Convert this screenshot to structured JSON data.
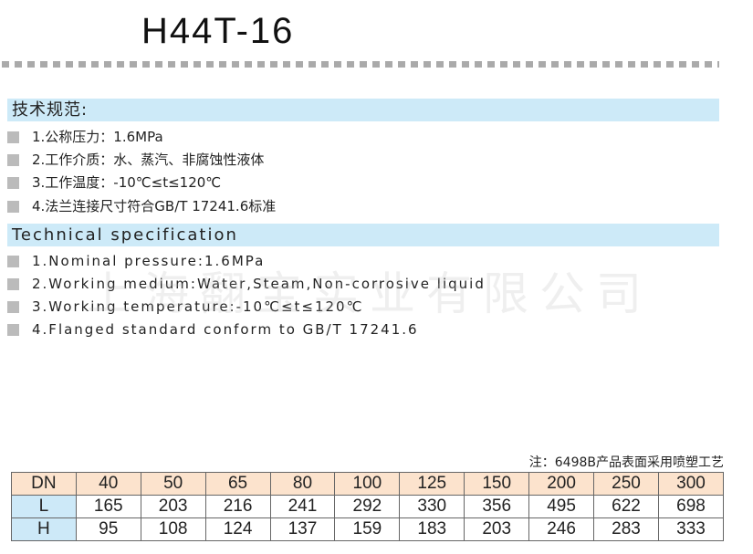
{
  "title": "H44T-16",
  "zh": {
    "heading": "技术规范:",
    "items": [
      "1.公称压力：1.6MPa",
      "2.工作介质：水、蒸汽、非腐蚀性液体",
      "3.工作温度：-10℃≤t≤120℃",
      "4.法兰连接尺寸符合GB/T 17241.6标准"
    ]
  },
  "en": {
    "heading": "Technical specification",
    "items": [
      "1.Nominal pressure:1.6MPa",
      "2.Working medium:Water,Steam,Non-corrosive liquid",
      "3.Working temperature:-10℃≤t≤120℃",
      "4.Flanged standard conform to GB/T 17241.6"
    ]
  },
  "watermark": "上海翻宝实业有限公司",
  "note": "注：6498B产品表面采用喷塑工艺",
  "table": {
    "rows": [
      {
        "label": "DN",
        "values": [
          "40",
          "50",
          "65",
          "80",
          "100",
          "125",
          "150",
          "200",
          "250",
          "300"
        ]
      },
      {
        "label": "L",
        "values": [
          "165",
          "203",
          "216",
          "241",
          "292",
          "330",
          "356",
          "495",
          "622",
          "698"
        ]
      },
      {
        "label": "H",
        "values": [
          "95",
          "108",
          "124",
          "137",
          "159",
          "183",
          "203",
          "246",
          "283",
          "333"
        ]
      }
    ]
  },
  "colors": {
    "heading_bar": "#cdeaf8",
    "table_header": "#fce3cd",
    "row_header": "#cde9f8",
    "bullet": "#bbbbbb"
  }
}
